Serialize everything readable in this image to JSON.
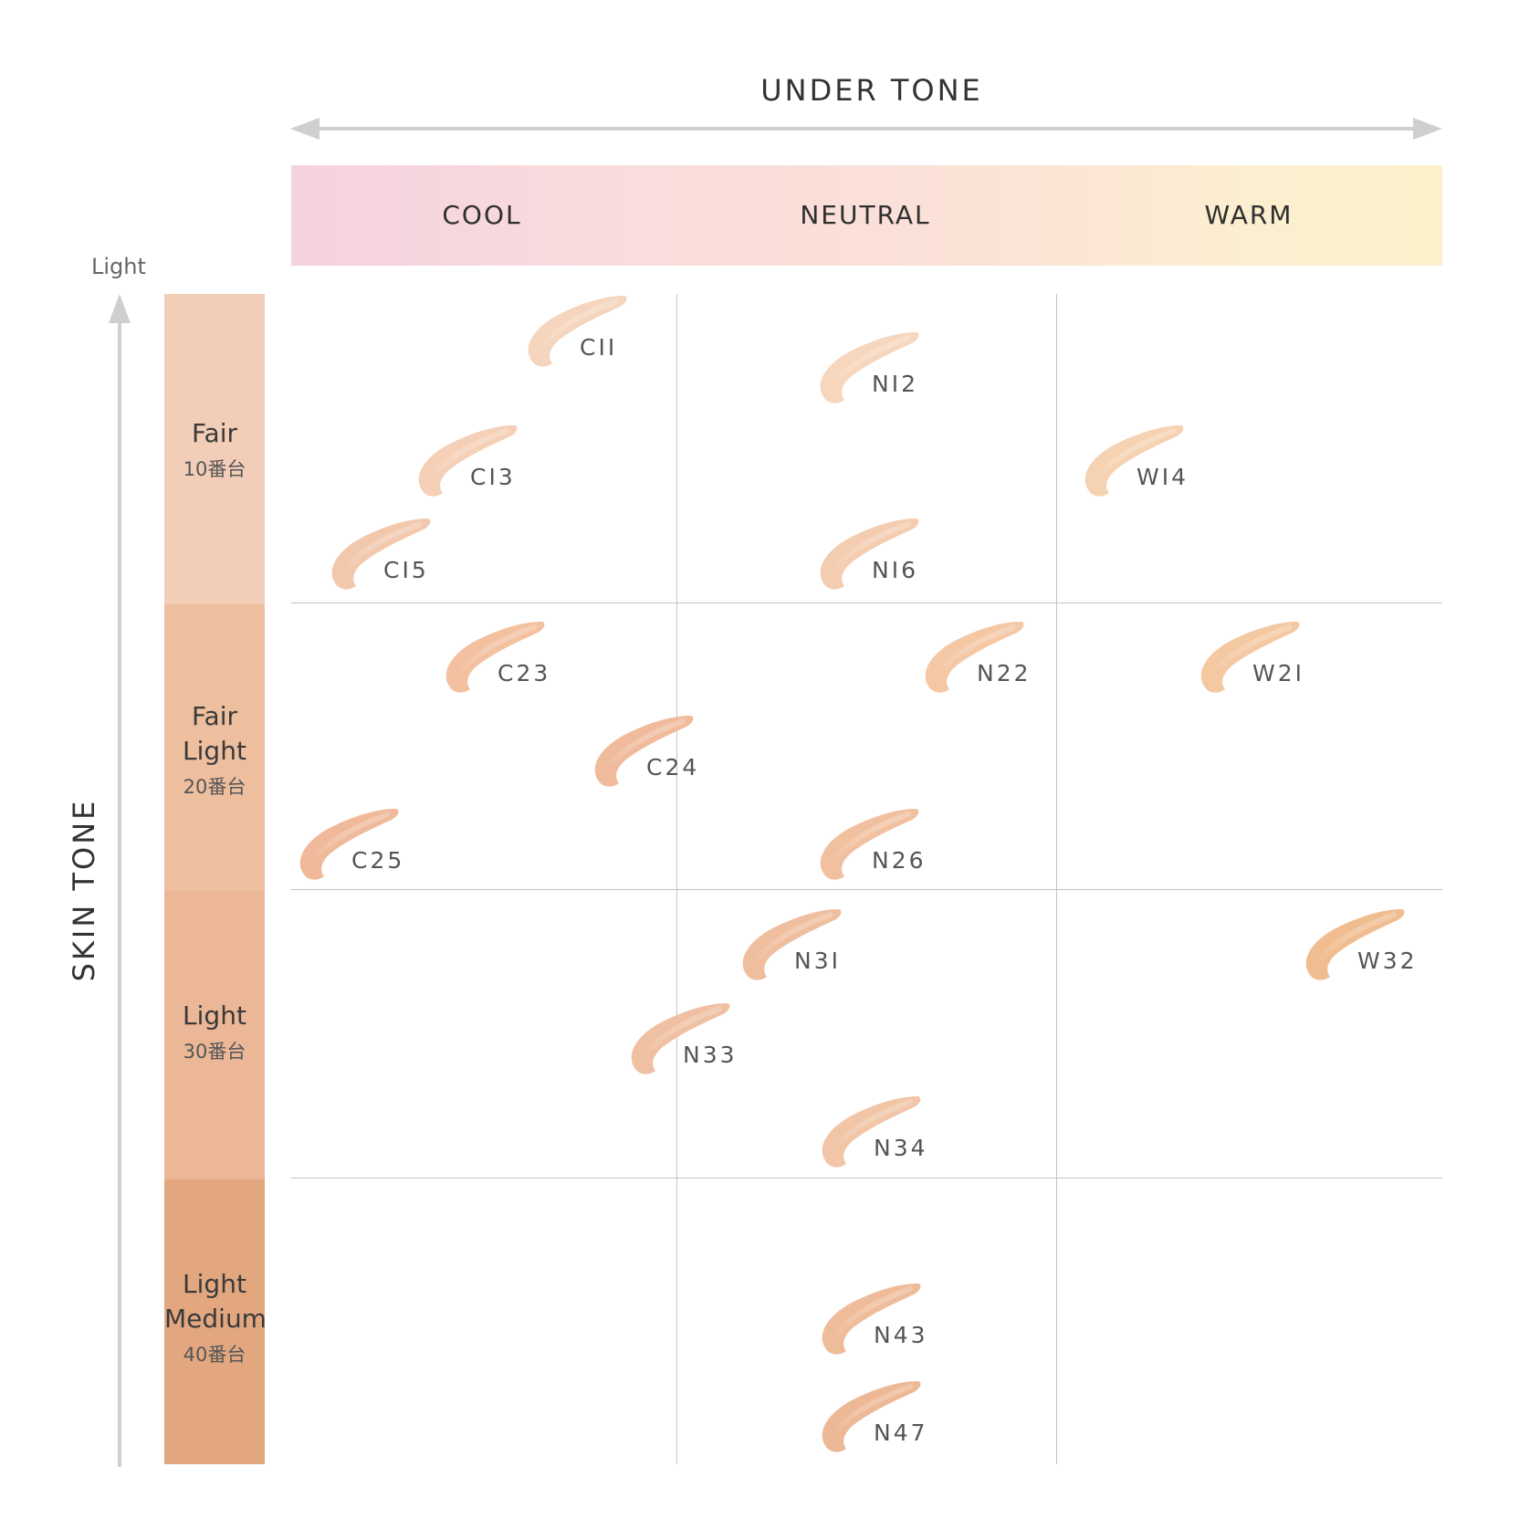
{
  "header": {
    "under_tone_title": "UNDER TONE"
  },
  "undertones": [
    {
      "label": "COOL"
    },
    {
      "label": "NEUTRAL"
    },
    {
      "label": "WARM"
    }
  ],
  "axis": {
    "light_label": "Light",
    "skin_tone_title": "SKIN TONE"
  },
  "skin_tones": [
    {
      "name": "Fair",
      "number": "10番台",
      "color": "#f2cdb8"
    },
    {
      "name": "Fair\nLight",
      "number": "20番台",
      "color": "#eebf9f"
    },
    {
      "name": "Light",
      "number": "30番台",
      "color": "#ebb797"
    },
    {
      "name": "Light\nMedium",
      "number": "40番台",
      "color": "#e3a77f"
    }
  ],
  "shades": [
    {
      "code": "CII",
      "color": "#f5d5bd"
    },
    {
      "code": "NI2",
      "color": "#f6d6bd"
    },
    {
      "code": "CI3",
      "color": "#f5cfb6"
    },
    {
      "code": "WI4",
      "color": "#f5d3b2"
    },
    {
      "code": "CI5",
      "color": "#f2c8ad"
    },
    {
      "code": "NI6",
      "color": "#f4ccb0"
    },
    {
      "code": "C23",
      "color": "#f3c0a0"
    },
    {
      "code": "N22",
      "color": "#f4c7a5"
    },
    {
      "code": "W2I",
      "color": "#f4c8a1"
    },
    {
      "code": "C24",
      "color": "#f0bb9c"
    },
    {
      "code": "C25",
      "color": "#efb99a"
    },
    {
      "code": "N26",
      "color": "#f1c19f"
    },
    {
      "code": "N3I",
      "color": "#efbe9e"
    },
    {
      "code": "W32",
      "color": "#f0bd91"
    },
    {
      "code": "N33",
      "color": "#efc0a1"
    },
    {
      "code": "N34",
      "color": "#f1c5a6"
    },
    {
      "code": "N43",
      "color": "#efbc9a"
    },
    {
      "code": "N47",
      "color": "#edb895"
    }
  ]
}
